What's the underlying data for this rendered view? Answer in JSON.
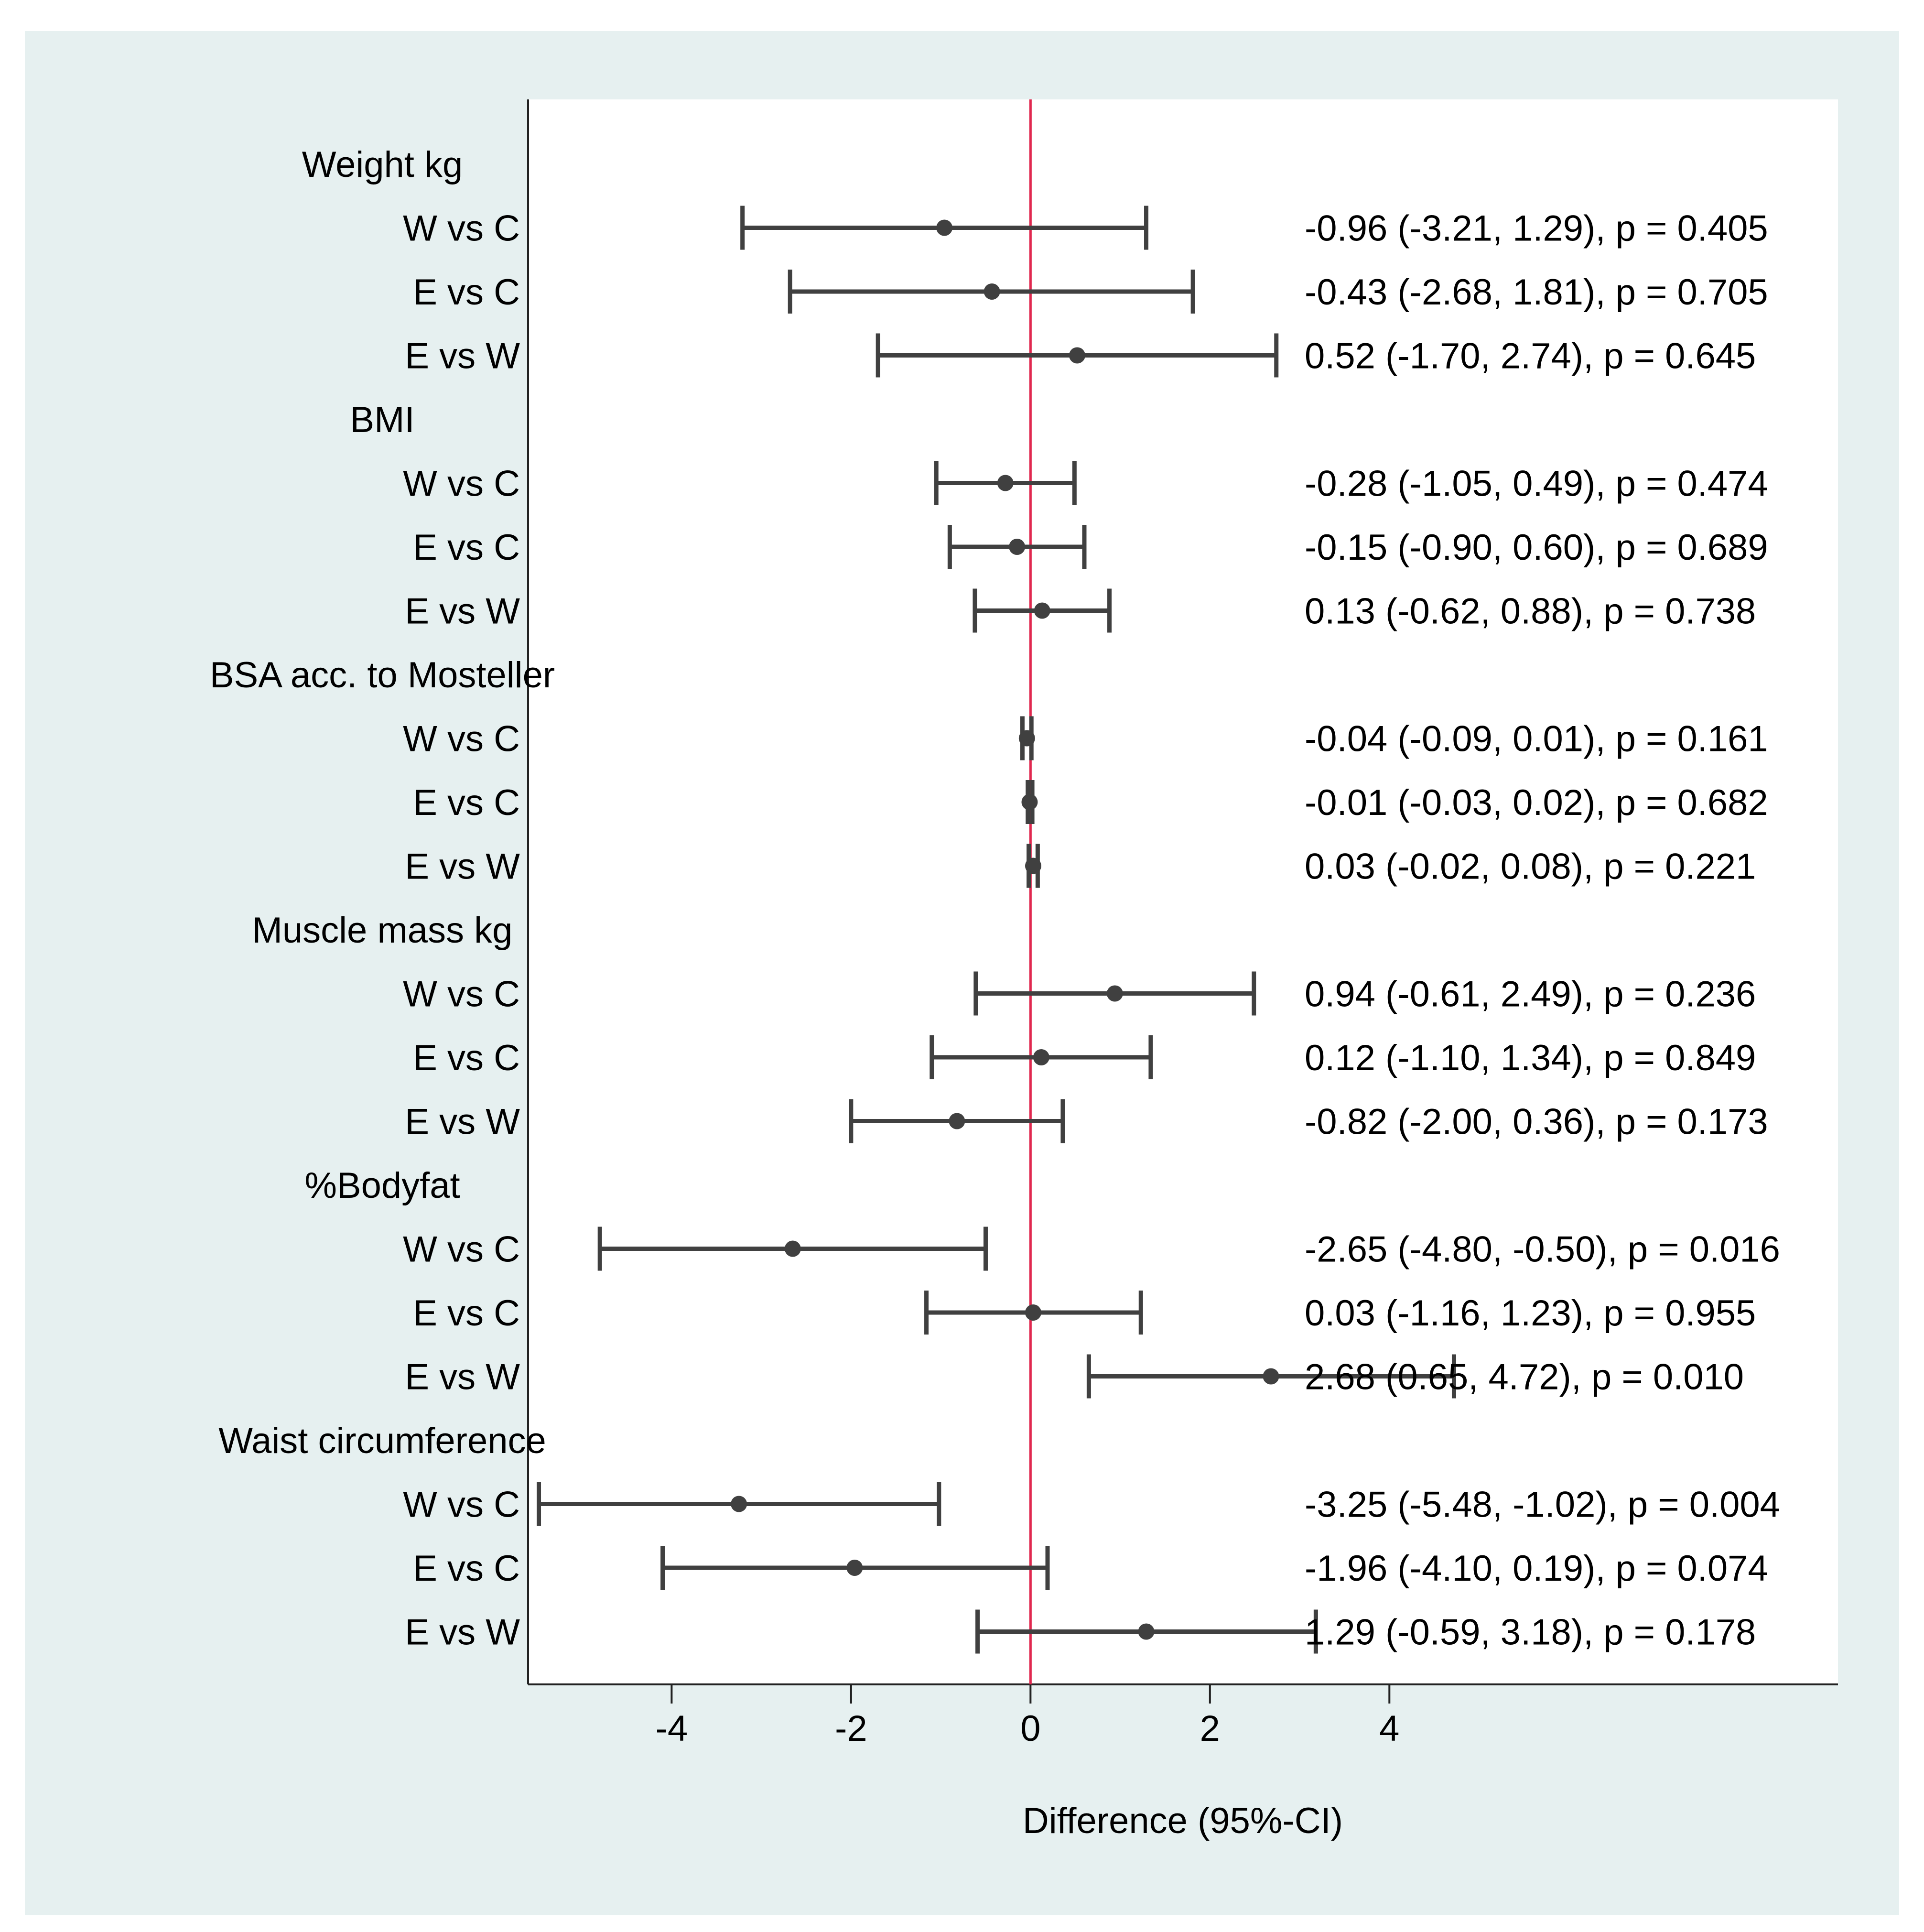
{
  "chart_data": {
    "type": "forest",
    "xlabel": "Difference (95%-CI)",
    "xlim": [
      -5.6,
      9.0
    ],
    "xticks": [
      -4,
      -2,
      0,
      2,
      4
    ],
    "xtick_labels": [
      "-4",
      "-2",
      "0",
      "2",
      "4"
    ],
    "reference_line": 0,
    "reference_color": "#e0284f",
    "marker_color": "#404040",
    "groups": [
      {
        "label": "Weight kg",
        "rows": [
          {
            "label": "W vs C",
            "estimate": -0.96,
            "lower": -3.21,
            "upper": 1.29,
            "text": "-0.96 (-3.21, 1.29), p = 0.405"
          },
          {
            "label": "E vs C",
            "estimate": -0.43,
            "lower": -2.68,
            "upper": 1.81,
            "text": "-0.43 (-2.68, 1.81), p = 0.705"
          },
          {
            "label": "E vs W",
            "estimate": 0.52,
            "lower": -1.7,
            "upper": 2.74,
            "text": "0.52 (-1.70, 2.74), p = 0.645"
          }
        ]
      },
      {
        "label": "BMI",
        "rows": [
          {
            "label": "W vs C",
            "estimate": -0.28,
            "lower": -1.05,
            "upper": 0.49,
            "text": "-0.28 (-1.05, 0.49), p = 0.474"
          },
          {
            "label": "E vs C",
            "estimate": -0.15,
            "lower": -0.9,
            "upper": 0.6,
            "text": "-0.15 (-0.90, 0.60), p = 0.689"
          },
          {
            "label": "E vs W",
            "estimate": 0.13,
            "lower": -0.62,
            "upper": 0.88,
            "text": "0.13 (-0.62, 0.88), p = 0.738"
          }
        ]
      },
      {
        "label": "BSA acc. to Mosteller",
        "rows": [
          {
            "label": "W vs C",
            "estimate": -0.04,
            "lower": -0.09,
            "upper": 0.01,
            "text": "-0.04 (-0.09, 0.01), p = 0.161"
          },
          {
            "label": "E vs C",
            "estimate": -0.01,
            "lower": -0.03,
            "upper": 0.02,
            "text": "-0.01 (-0.03, 0.02), p = 0.682"
          },
          {
            "label": "E vs W",
            "estimate": 0.03,
            "lower": -0.02,
            "upper": 0.08,
            "text": "0.03 (-0.02, 0.08), p = 0.221"
          }
        ]
      },
      {
        "label": "Muscle mass kg",
        "rows": [
          {
            "label": "W vs C",
            "estimate": 0.94,
            "lower": -0.61,
            "upper": 2.49,
            "text": "0.94 (-0.61, 2.49), p = 0.236"
          },
          {
            "label": "E vs C",
            "estimate": 0.12,
            "lower": -1.1,
            "upper": 1.34,
            "text": "0.12 (-1.10, 1.34), p = 0.849"
          },
          {
            "label": "E vs W",
            "estimate": -0.82,
            "lower": -2.0,
            "upper": 0.36,
            "text": "-0.82 (-2.00, 0.36), p = 0.173"
          }
        ]
      },
      {
        "label": "%Bodyfat",
        "rows": [
          {
            "label": "W vs C",
            "estimate": -2.65,
            "lower": -4.8,
            "upper": -0.5,
            "text": "-2.65 (-4.80, -0.50), p = 0.016"
          },
          {
            "label": "E vs C",
            "estimate": 0.03,
            "lower": -1.16,
            "upper": 1.23,
            "text": "0.03 (-1.16, 1.23), p = 0.955"
          },
          {
            "label": "E vs W",
            "estimate": 2.68,
            "lower": 0.65,
            "upper": 4.72,
            "text": "2.68 (0.65, 4.72), p = 0.010"
          }
        ]
      },
      {
        "label": "Waist circumference",
        "rows": [
          {
            "label": "W vs C",
            "estimate": -3.25,
            "lower": -5.48,
            "upper": -1.02,
            "text": "-3.25 (-5.48, -1.02), p = 0.004"
          },
          {
            "label": "E vs C",
            "estimate": -1.96,
            "lower": -4.1,
            "upper": 0.19,
            "text": "-1.96 (-4.10, 0.19), p = 0.074"
          },
          {
            "label": "E vs W",
            "estimate": 1.29,
            "lower": -0.59,
            "upper": 3.18,
            "text": "1.29 (-0.59, 3.18), p = 0.178"
          }
        ]
      }
    ]
  }
}
